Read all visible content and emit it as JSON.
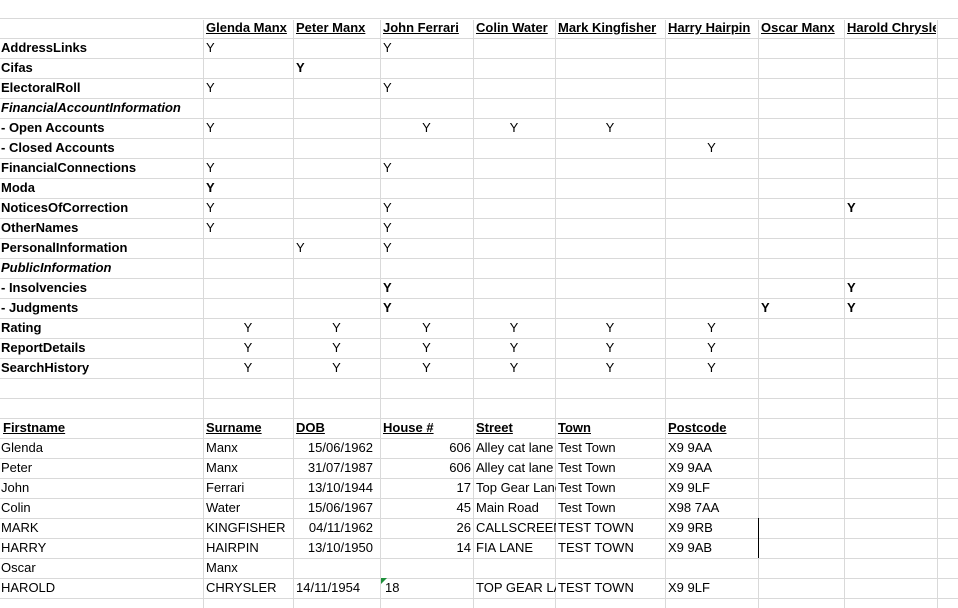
{
  "people_headers": [
    "Glenda Manx",
    "Peter Manx",
    "John Ferrari",
    "Colin Water",
    "Mark Kingfisher",
    "Harry Hairpin",
    "Oscar Manx",
    "Harold Chrysler"
  ],
  "matrix_rows": [
    {
      "label": "AddressLinks",
      "style": "b",
      "marks": [
        {
          "col": 0,
          "v": "Y"
        },
        {
          "col": 2,
          "v": "Y"
        }
      ]
    },
    {
      "label": "Cifas",
      "style": "b",
      "marks": [
        {
          "col": 1,
          "v": "Y",
          "bold": true
        }
      ]
    },
    {
      "label": "ElectoralRoll",
      "style": "b",
      "marks": [
        {
          "col": 0,
          "v": "Y"
        },
        {
          "col": 2,
          "v": "Y"
        }
      ]
    },
    {
      "label": "FinancialAccountInformation",
      "style": "bi",
      "marks": []
    },
    {
      "label": " - Open Accounts",
      "style": "b",
      "marks": [
        {
          "col": 0,
          "v": "Y"
        },
        {
          "col": 2,
          "v": "Y",
          "center": true
        },
        {
          "col": 3,
          "v": "Y",
          "center": true
        },
        {
          "col": 4,
          "v": "Y",
          "center": true
        }
      ]
    },
    {
      "label": " - Closed Accounts",
      "style": "b",
      "marks": [
        {
          "col": 5,
          "v": "Y",
          "center": true
        }
      ]
    },
    {
      "label": "FinancialConnections",
      "style": "b",
      "marks": [
        {
          "col": 0,
          "v": "Y"
        },
        {
          "col": 2,
          "v": "Y"
        }
      ]
    },
    {
      "label": "Moda",
      "style": "b",
      "marks": [
        {
          "col": 0,
          "v": "Y",
          "bold": true
        }
      ]
    },
    {
      "label": "NoticesOfCorrection",
      "style": "b",
      "marks": [
        {
          "col": 0,
          "v": "Y"
        },
        {
          "col": 2,
          "v": "Y"
        },
        {
          "col": 7,
          "v": "Y",
          "bold": true
        }
      ]
    },
    {
      "label": "OtherNames",
      "style": "b",
      "marks": [
        {
          "col": 0,
          "v": "Y"
        },
        {
          "col": 2,
          "v": "Y"
        }
      ]
    },
    {
      "label": "PersonalInformation",
      "style": "b",
      "marks": [
        {
          "col": 1,
          "v": "Y"
        },
        {
          "col": 2,
          "v": "Y"
        }
      ]
    },
    {
      "label": "PublicInformation",
      "style": "bi",
      "marks": []
    },
    {
      "label": " -   Insolvencies",
      "style": "b",
      "marks": [
        {
          "col": 2,
          "v": "Y",
          "bold": true
        },
        {
          "col": 7,
          "v": "Y",
          "bold": true
        }
      ]
    },
    {
      "label": " - Judgments",
      "style": "b",
      "marks": [
        {
          "col": 2,
          "v": "Y",
          "bold": true
        },
        {
          "col": 6,
          "v": "Y",
          "bold": true
        },
        {
          "col": 7,
          "v": "Y",
          "bold": true
        }
      ]
    },
    {
      "label": "Rating",
      "style": "b",
      "marks": [
        {
          "col": 0,
          "v": "Y",
          "center": true
        },
        {
          "col": 1,
          "v": "Y",
          "center": true
        },
        {
          "col": 2,
          "v": "Y",
          "center": true
        },
        {
          "col": 3,
          "v": "Y",
          "center": true
        },
        {
          "col": 4,
          "v": "Y",
          "center": true
        },
        {
          "col": 5,
          "v": "Y",
          "center": true
        }
      ]
    },
    {
      "label": "ReportDetails",
      "style": "b",
      "marks": [
        {
          "col": 0,
          "v": "Y",
          "center": true
        },
        {
          "col": 1,
          "v": "Y",
          "center": true
        },
        {
          "col": 2,
          "v": "Y",
          "center": true
        },
        {
          "col": 3,
          "v": "Y",
          "center": true
        },
        {
          "col": 4,
          "v": "Y",
          "center": true
        },
        {
          "col": 5,
          "v": "Y",
          "center": true
        }
      ]
    },
    {
      "label": "SearchHistory",
      "style": "b",
      "marks": [
        {
          "col": 0,
          "v": "Y",
          "center": true
        },
        {
          "col": 1,
          "v": "Y",
          "center": true
        },
        {
          "col": 2,
          "v": "Y",
          "center": true
        },
        {
          "col": 3,
          "v": "Y",
          "center": true
        },
        {
          "col": 4,
          "v": "Y",
          "center": true
        },
        {
          "col": 5,
          "v": "Y",
          "center": true
        }
      ]
    }
  ],
  "address_headers": [
    "Firstname",
    "Surname",
    "DOB",
    "House #",
    "Street",
    "Town",
    "Postcode"
  ],
  "address_rows": [
    [
      "Glenda",
      "Manx",
      "15/06/1962",
      "606",
      "Alley cat lane",
      "Test Town",
      "X9 9AA"
    ],
    [
      "Peter",
      "Manx",
      "31/07/1987",
      "606",
      "Alley cat lane",
      "Test Town",
      "X9 9AA"
    ],
    [
      "John",
      "Ferrari",
      "13/10/1944",
      "17",
      "Top Gear Lane",
      "Test Town",
      "X9 9LF"
    ],
    [
      "Colin",
      "Water",
      "15/06/1967",
      "45",
      "Main Road",
      "Test Town",
      "X98 7AA"
    ],
    [
      "MARK",
      "KINGFISHER",
      "04/11/1962",
      "26",
      "CALLSCREEN",
      "TEST TOWN",
      "X9 9RB"
    ],
    [
      "HARRY",
      "HAIRPIN",
      "13/10/1950",
      "14",
      "FIA LANE",
      "TEST TOWN",
      "X9 9AB"
    ],
    [
      "Oscar",
      "Manx",
      "",
      "",
      "",
      "",
      ""
    ],
    [
      "HAROLD",
      "CHRYSLER",
      "14/11/1954",
      "18",
      "TOP GEAR LANE",
      "TEST TOWN",
      "X9 9LF"
    ]
  ]
}
